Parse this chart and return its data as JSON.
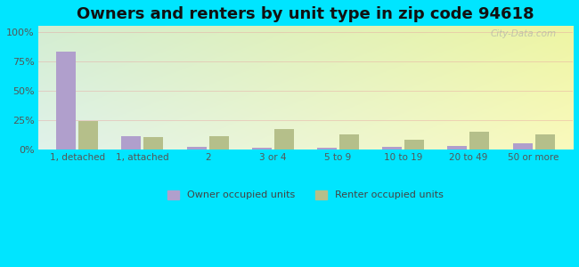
{
  "title": "Owners and renters by unit type in zip code 94618",
  "categories": [
    "1, detached",
    "1, attached",
    "2",
    "3 or 4",
    "5 to 9",
    "10 to 19",
    "20 to 49",
    "50 or more"
  ],
  "owner_values": [
    83,
    11,
    2,
    1,
    1,
    2,
    3,
    5
  ],
  "renter_values": [
    24,
    10,
    11,
    17,
    13,
    8,
    15,
    13
  ],
  "owner_color": "#b09fcc",
  "renter_color": "#b5bf8a",
  "background_color": "#00e5ff",
  "title_fontsize": 13,
  "ylabel_values": [
    0,
    25,
    50,
    75,
    100
  ],
  "ylabel_labels": [
    "0%",
    "25%",
    "50%",
    "75%",
    "100%"
  ],
  "ylim": [
    0,
    105
  ],
  "legend_labels": [
    "Owner occupied units",
    "Renter occupied units"
  ],
  "watermark": "City-Data.com",
  "bar_width": 0.3,
  "bar_gap": 0.04,
  "grid_color": "#e8a0a0",
  "tick_color": "#555555"
}
